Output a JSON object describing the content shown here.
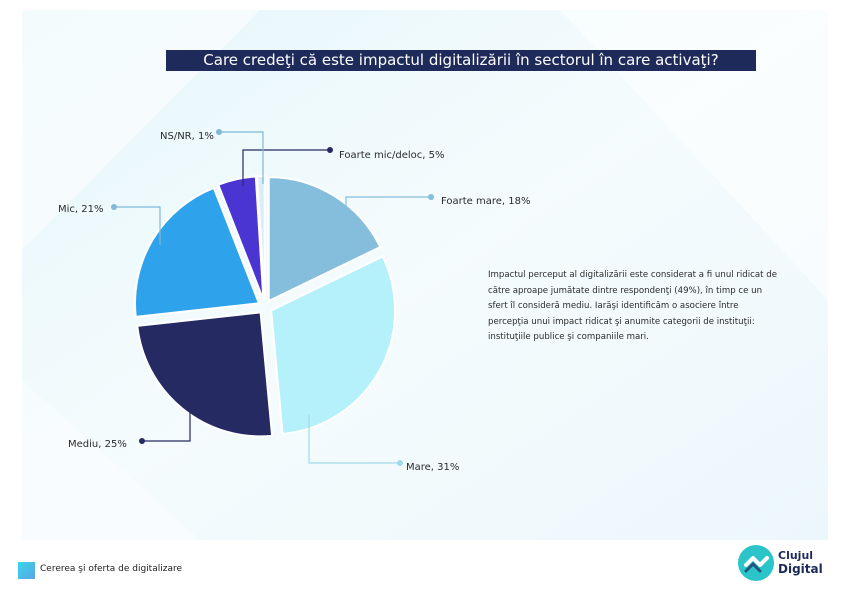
{
  "title": "Care credeţi că este impactul digitalizării în sectorul în care activaţi?",
  "note": "Impactul perceput al digitalizării este considerat a fi unul ridicat de către aproape jumătate dintre respondenţi (49%), în timp ce un sfert îl consideră mediu. Iarăşi identificăm o asociere între percepţia unui impact ridicat şi anumite categorii de instituţii: instituţiile publice şi companiile mari.",
  "footer": {
    "label": "Cererea şi oferta de digitalizare"
  },
  "logo": {
    "line1": "Clujul",
    "line2": "Digital",
    "icon": "cluj-digital-logo-icon"
  },
  "colors": {
    "title_bg": "#1e2a5a",
    "background_tint": "#eef8fb"
  },
  "chart_data": {
    "type": "pie",
    "title": "Care credeţi că este impactul digitalizării în sectorul în care activaţi?",
    "slices": [
      {
        "label": "Foarte mare, 18%",
        "value": 18,
        "color": "#85bddc"
      },
      {
        "label": "Mare, 31%",
        "value": 31,
        "color": "#b4f1fb"
      },
      {
        "label": "Mediu, 25%",
        "value": 25,
        "color": "#262a63"
      },
      {
        "label": "Mic, 21%",
        "value": 21,
        "color": "#2fa2ec"
      },
      {
        "label": "Foarte mic/deloc, 5%",
        "value": 5,
        "color": "#4a35d2"
      },
      {
        "label": "NS/NR, 1%",
        "value": 1,
        "color": "#d9eef8"
      }
    ],
    "legend": "none"
  }
}
